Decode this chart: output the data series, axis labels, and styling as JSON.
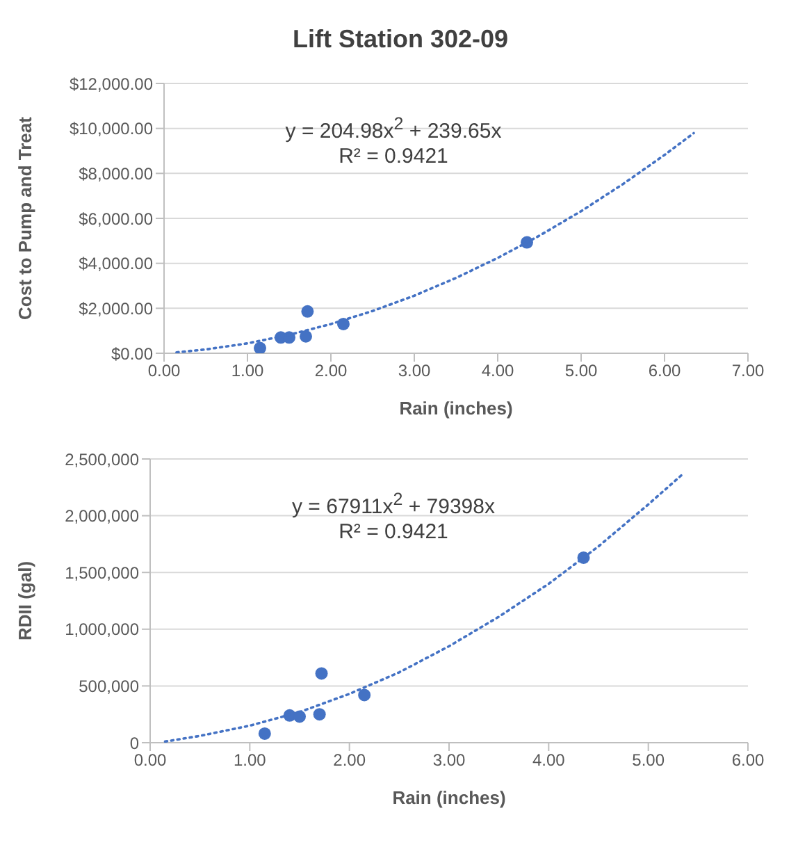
{
  "chart_data": [
    {
      "type": "scatter",
      "title": "Lift Station 302-09",
      "xlabel": "Rain (inches)",
      "ylabel": "Cost to Pump and Treat",
      "xlim": [
        0,
        7
      ],
      "xticks": [
        {
          "value": 0,
          "label": "0.00"
        },
        {
          "value": 1,
          "label": "1.00"
        },
        {
          "value": 2,
          "label": "2.00"
        },
        {
          "value": 3,
          "label": "3.00"
        },
        {
          "value": 4,
          "label": "4.00"
        },
        {
          "value": 5,
          "label": "5.00"
        },
        {
          "value": 6,
          "label": "6.00"
        },
        {
          "value": 7,
          "label": "7.00"
        }
      ],
      "ylim": [
        0,
        12000
      ],
      "yticks": [
        {
          "value": 0,
          "label": "$0.00"
        },
        {
          "value": 2000,
          "label": "$2,000.00"
        },
        {
          "value": 4000,
          "label": "$4,000.00"
        },
        {
          "value": 6000,
          "label": "$6,000.00"
        },
        {
          "value": 8000,
          "label": "$8,000.00"
        },
        {
          "value": 10000,
          "label": "$10,000.00"
        },
        {
          "value": 12000,
          "label": "$12,000.00"
        }
      ],
      "grid": "y",
      "marker": "circle",
      "annotations": [
        "y = 204.98x$^{2}$ + 239.65x",
        "R² = 0.9421"
      ],
      "series": [
        {
          "color": "#4472c4",
          "x": [
            1.15,
            1.4,
            1.5,
            1.7,
            1.72,
            2.15,
            4.35
          ],
          "values": [
            230,
            700,
            700,
            750,
            1860,
            1300,
            4930
          ]
        },
        {
          "type": "line",
          "color": "#4472c4",
          "line_style": "dotted",
          "marker": "none",
          "x": [
            0.15,
            0.5,
            1,
            1.5,
            2,
            2.5,
            3,
            3.5,
            4,
            4.5,
            5,
            5.5,
            6,
            6.35
          ],
          "values": [
            40,
            170,
            440,
            820,
            1300,
            1880,
            2560,
            3350,
            4240,
            5230,
            6320,
            7520,
            8820,
            9790
          ]
        }
      ]
    },
    {
      "type": "scatter",
      "xlabel": "Rain (inches)",
      "ylabel": "RDII (gal)",
      "xlim": [
        0,
        6
      ],
      "xticks": [
        {
          "value": 0,
          "label": "0.00"
        },
        {
          "value": 1,
          "label": "1.00"
        },
        {
          "value": 2,
          "label": "2.00"
        },
        {
          "value": 3,
          "label": "3.00"
        },
        {
          "value": 4,
          "label": "4.00"
        },
        {
          "value": 5,
          "label": "5.00"
        },
        {
          "value": 6,
          "label": "6.00"
        }
      ],
      "ylim": [
        0,
        2500000
      ],
      "yticks": [
        0,
        {
          "value": 500000,
          "label": "500,000"
        },
        {
          "value": 1000000,
          "label": "1,000,000"
        },
        {
          "value": 1500000,
          "label": "1,500,000"
        },
        {
          "value": 2000000,
          "label": "2,000,000"
        },
        {
          "value": 2500000,
          "label": "2,500,000"
        }
      ],
      "grid": "y",
      "marker": "circle",
      "annotations": [
        "y = 67911x$^{2}$ + 79398x",
        "R² = 0.9421"
      ],
      "series": [
        {
          "color": "#4472c4",
          "x": [
            1.15,
            1.4,
            1.5,
            1.7,
            1.72,
            2.15,
            4.35
          ],
          "values": [
            80000,
            240000,
            230000,
            250000,
            610000,
            420000,
            1630000
          ]
        },
        {
          "type": "line",
          "color": "#4472c4",
          "line_style": "dotted",
          "marker": "none",
          "x": [
            0.15,
            0.5,
            1,
            1.5,
            2,
            2.5,
            3,
            3.5,
            4,
            4.5,
            5,
            5.35
          ],
          "values": [
            10000,
            60000,
            150000,
            270000,
            430000,
            620000,
            850000,
            1110000,
            1400000,
            1730000,
            2100000,
            2370000
          ]
        }
      ]
    }
  ]
}
